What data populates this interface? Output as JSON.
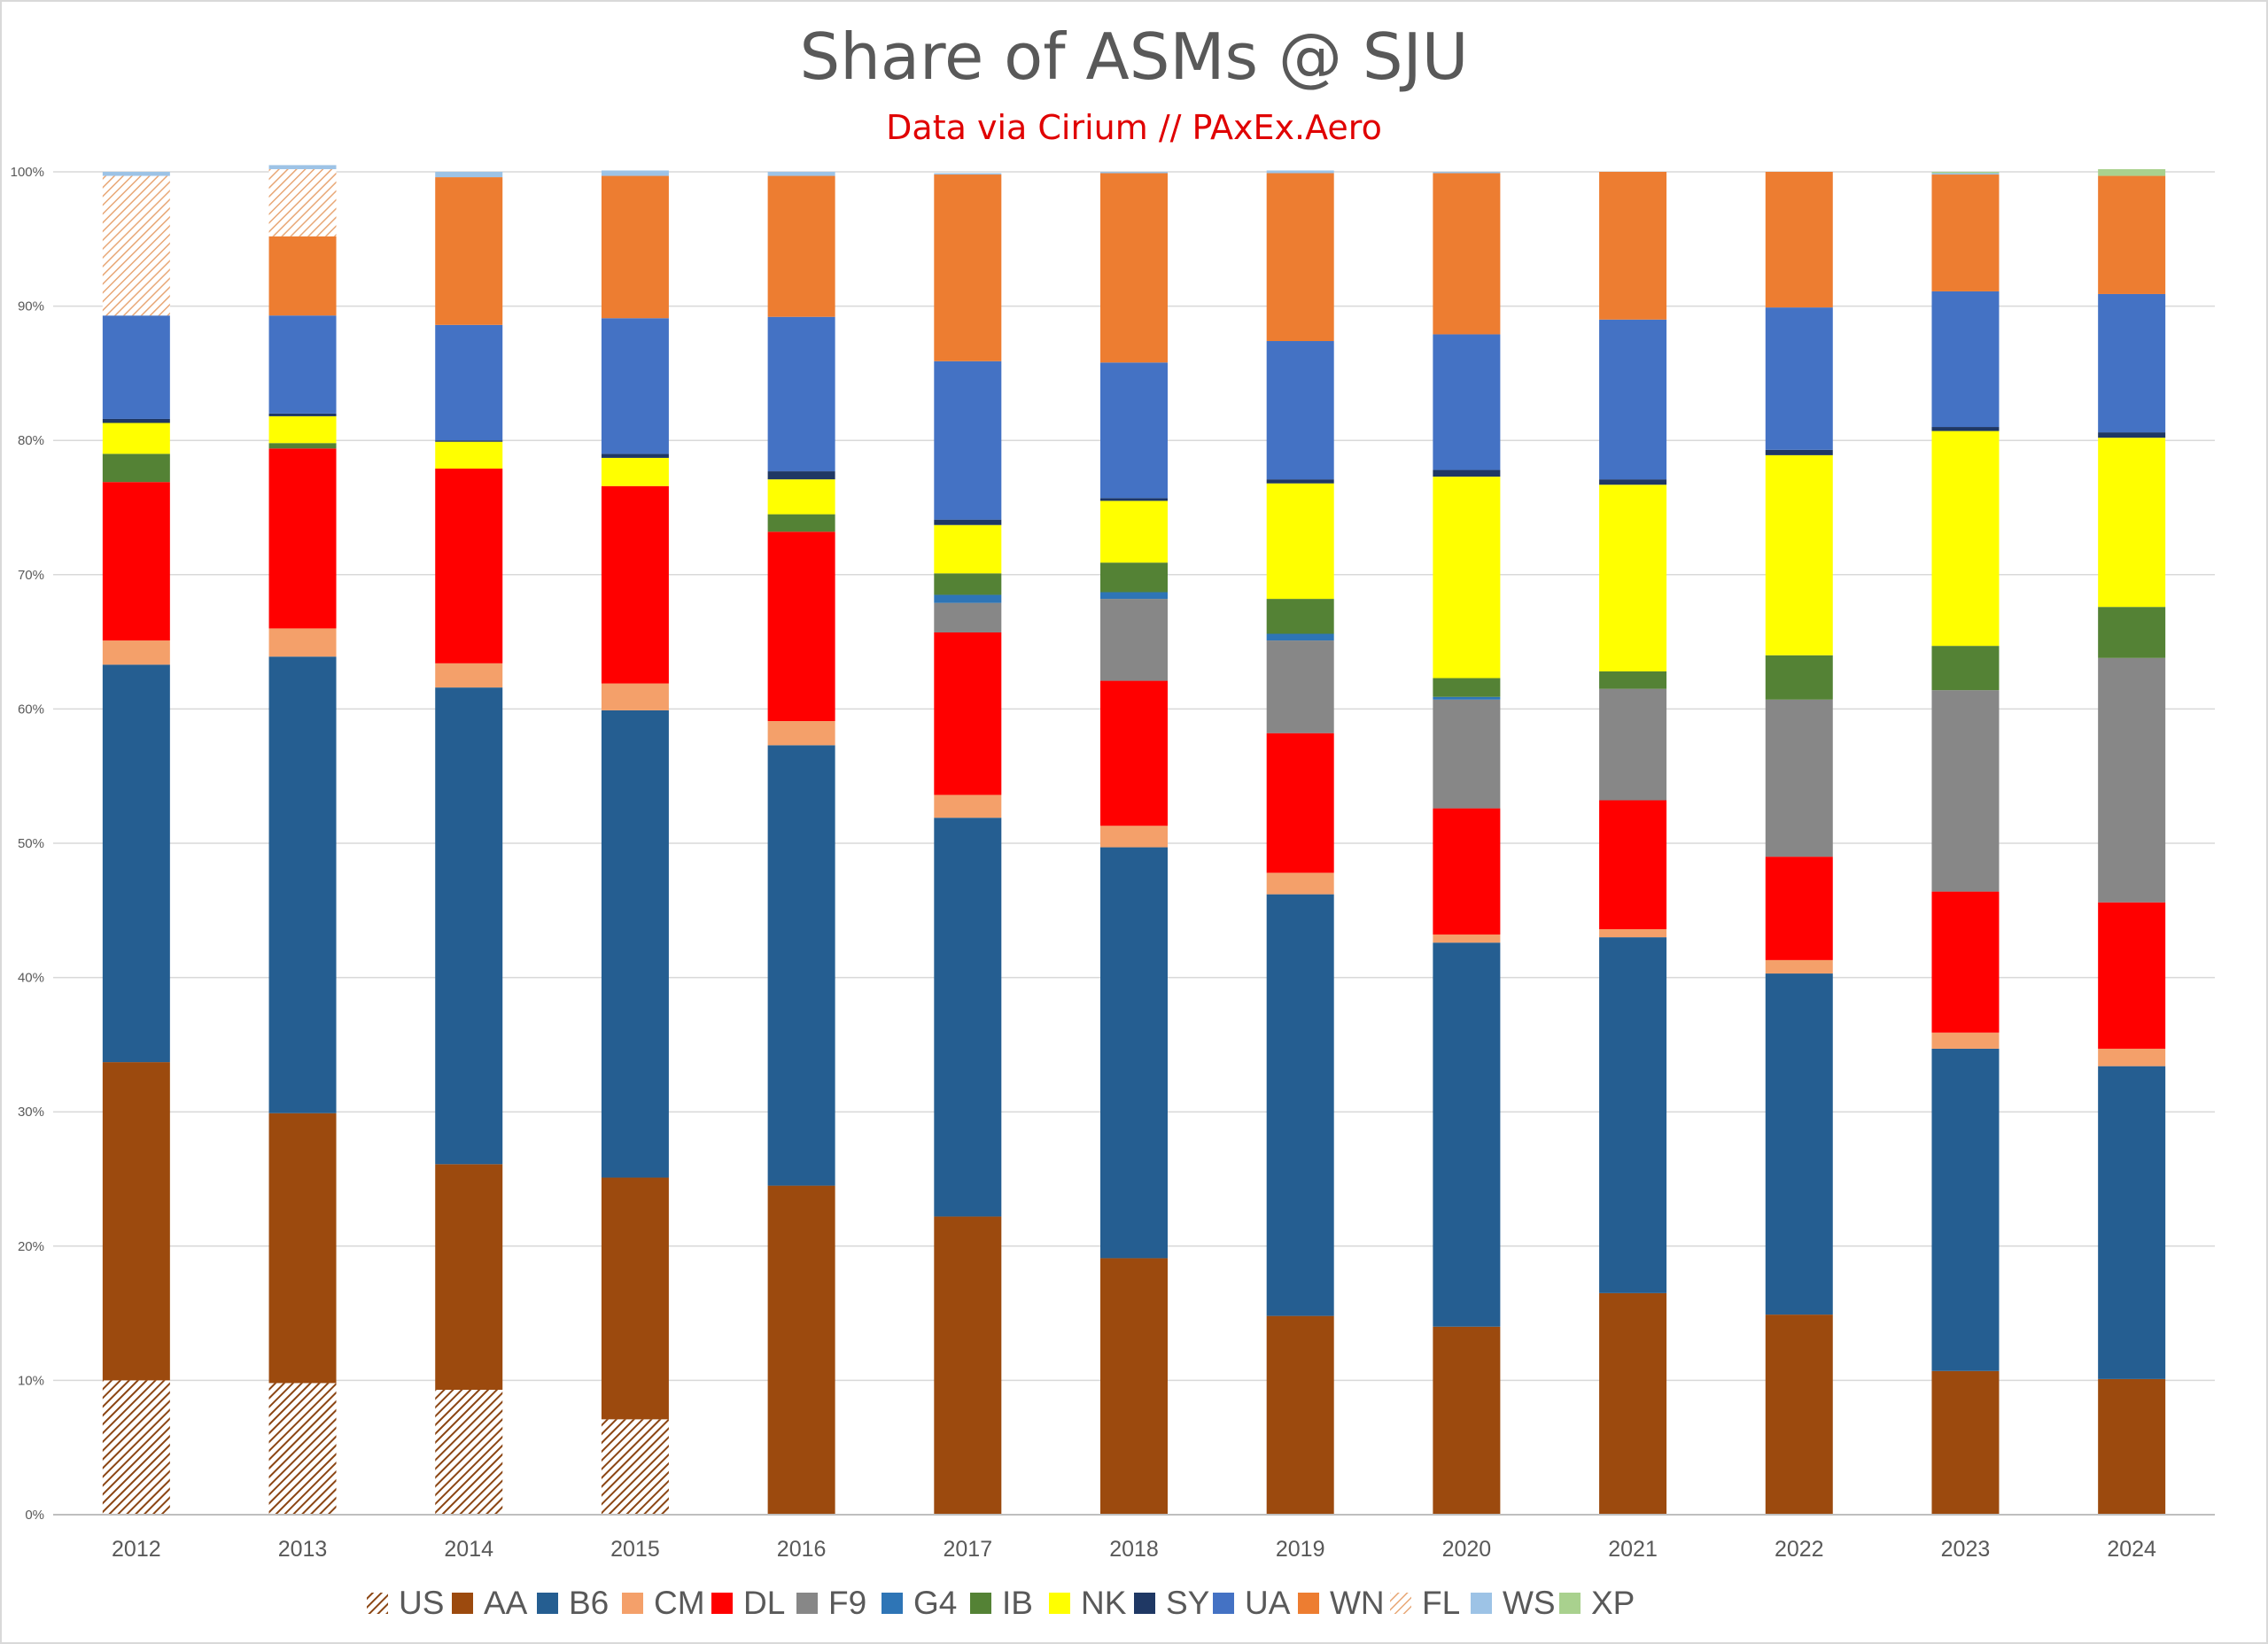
{
  "chart_data": {
    "type": "bar",
    "stacked": true,
    "title": "Share of ASMs @ SJU",
    "subtitle": "Data via Cirium // PAxEx.Aero",
    "xlabel": "",
    "ylabel": "",
    "ylim": [
      0,
      100
    ],
    "yticks": [
      "0%",
      "10%",
      "20%",
      "30%",
      "40%",
      "50%",
      "60%",
      "70%",
      "80%",
      "90%",
      "100%"
    ],
    "grid": true,
    "legend": "bottom",
    "categories": [
      "2012",
      "2013",
      "2014",
      "2015",
      "2016",
      "2017",
      "2018",
      "2019",
      "2020",
      "2021",
      "2022",
      "2023",
      "2024"
    ],
    "series": [
      {
        "name": "US",
        "color": "#8b4513",
        "pattern": "hatch-dark",
        "values": [
          10.0,
          9.8,
          9.3,
          7.1,
          0,
          0,
          0,
          0,
          0,
          0,
          0,
          0,
          0
        ]
      },
      {
        "name": "AA",
        "color": "#9c4a0e",
        "values": [
          23.7,
          20.1,
          16.8,
          18.0,
          24.5,
          22.2,
          19.1,
          14.8,
          14.0,
          16.5,
          14.9,
          10.7,
          10.1
        ]
      },
      {
        "name": "B6",
        "color": "#255e91",
        "values": [
          29.6,
          34.0,
          35.5,
          34.8,
          32.8,
          29.7,
          30.6,
          31.4,
          28.6,
          26.5,
          25.4,
          24.0,
          23.3
        ]
      },
      {
        "name": "CM",
        "color": "#f4a06a",
        "values": [
          1.8,
          2.1,
          1.8,
          2.0,
          1.8,
          1.7,
          1.6,
          1.6,
          0.6,
          0.6,
          1.0,
          1.2,
          1.3
        ]
      },
      {
        "name": "DL",
        "color": "#ff0000",
        "values": [
          11.8,
          13.4,
          14.5,
          14.7,
          14.1,
          12.1,
          10.8,
          10.4,
          9.4,
          9.6,
          7.7,
          10.5,
          10.9
        ]
      },
      {
        "name": "F9",
        "color": "#878787",
        "values": [
          0,
          0,
          0,
          0,
          0,
          2.2,
          6.1,
          6.9,
          8.1,
          8.3,
          11.7,
          15.0,
          18.2
        ]
      },
      {
        "name": "G4",
        "color": "#2e75b6",
        "values": [
          0,
          0,
          0,
          0,
          0,
          0.6,
          0.5,
          0.5,
          0.2,
          0,
          0,
          0,
          0
        ]
      },
      {
        "name": "IB",
        "color": "#548235",
        "values": [
          2.1,
          0.4,
          0,
          0,
          1.3,
          1.6,
          2.2,
          2.6,
          1.4,
          1.3,
          3.3,
          3.3,
          3.8
        ]
      },
      {
        "name": "NK",
        "color": "#ffff00",
        "values": [
          2.3,
          2.0,
          2.0,
          2.1,
          2.6,
          3.6,
          4.6,
          8.6,
          15.0,
          13.9,
          14.9,
          16.0,
          12.6
        ]
      },
      {
        "name": "SY",
        "color": "#1f3864",
        "values": [
          0.3,
          0.2,
          0.1,
          0.3,
          0.6,
          0.4,
          0.2,
          0.3,
          0.5,
          0.4,
          0.4,
          0.3,
          0.4
        ]
      },
      {
        "name": "UA",
        "color": "#4472c4",
        "values": [
          7.7,
          7.3,
          8.6,
          10.1,
          11.5,
          11.8,
          10.1,
          10.3,
          10.1,
          11.9,
          10.6,
          10.1,
          10.3
        ]
      },
      {
        "name": "WN",
        "color": "#ed7d31",
        "values": [
          0,
          5.9,
          11.0,
          10.6,
          10.5,
          13.9,
          14.1,
          12.5,
          12.0,
          11.0,
          10.1,
          8.7,
          8.8
        ]
      },
      {
        "name": "FL",
        "color": "#f4b183",
        "pattern": "hatch-light",
        "values": [
          10.4,
          5.0,
          0,
          0,
          0,
          0,
          0,
          0,
          0,
          0,
          0,
          0,
          0
        ]
      },
      {
        "name": "WS",
        "color": "#9dc3e6",
        "values": [
          0.3,
          0.3,
          0.4,
          0.4,
          0.3,
          0.1,
          0.1,
          0.2,
          0.1,
          0,
          0,
          0.1,
          0
        ]
      },
      {
        "name": "XP",
        "color": "#a9d18e",
        "values": [
          0,
          0,
          0,
          0,
          0,
          0,
          0,
          0,
          0,
          0,
          0,
          0.1,
          0.5
        ]
      }
    ]
  }
}
